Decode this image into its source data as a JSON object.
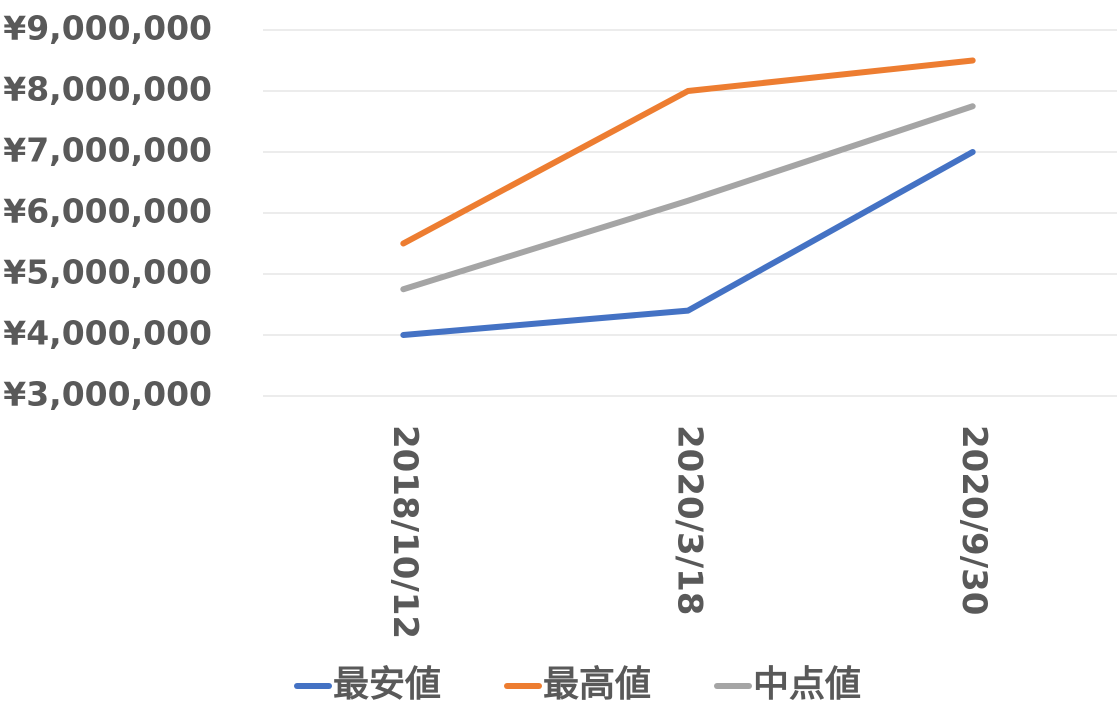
{
  "chart_data": {
    "type": "line",
    "categories": [
      "2018/10/12",
      "2020/3/18",
      "2020/9/30"
    ],
    "series": [
      {
        "name": "最安値",
        "color": "#4472c4",
        "values": [
          4000000,
          4400000,
          7000000
        ]
      },
      {
        "name": "最高値",
        "color": "#ed7d31",
        "values": [
          5500000,
          8000000,
          8500000
        ]
      },
      {
        "name": "中点値",
        "color": "#a5a5a5",
        "values": [
          4750000,
          6200000,
          7750000
        ]
      }
    ],
    "ylim": [
      3000000,
      9000000
    ],
    "yticks": [
      {
        "value": 3000000,
        "label": "¥3,000,000"
      },
      {
        "value": 4000000,
        "label": "¥4,000,000"
      },
      {
        "value": 5000000,
        "label": "¥5,000,000"
      },
      {
        "value": 6000000,
        "label": "¥6,000,000"
      },
      {
        "value": 7000000,
        "label": "¥7,000,000"
      },
      {
        "value": 8000000,
        "label": "¥8,000,000"
      },
      {
        "value": 9000000,
        "label": "¥9,000,000"
      }
    ],
    "grid": true,
    "legend": "bottom"
  }
}
